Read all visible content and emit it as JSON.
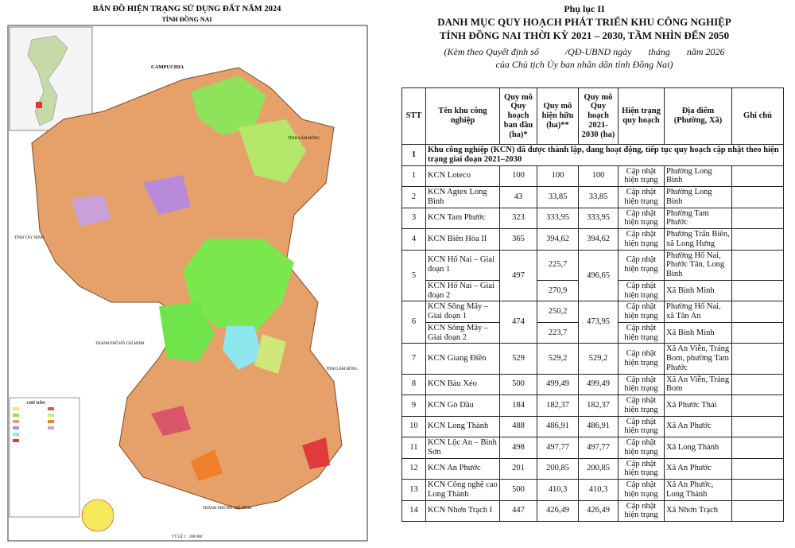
{
  "map": {
    "title": "BẢN ĐỒ HIỆN TRẠNG SỬ DỤNG ĐẤT NĂM 2024",
    "subtitle": "TỈNH ĐỒNG NAI",
    "labels": [
      "CAMPUCHIA",
      "TỈNH LÂM ĐỒNG",
      "TỈNH TÂY NINH",
      "THÀNH PHỐ HỒ CHÍ MINH",
      "TỈNH LÂM ĐỒNG",
      "THÀNH PHỐ HỒ CHÍ MINH"
    ],
    "legend_title": "CHÚ DẪN",
    "scale": "TỶ LỆ 1 : 100 000"
  },
  "header": {
    "appendix": "Phụ lục II",
    "title_line1": "DANH MỤC QUY HOẠCH PHÁT TRIỂN KHU CÔNG NGHIỆP",
    "title_line2": "TỈNH ĐỒNG NAI THỜI KỲ 2021 – 2030, TẦM NHÌN ĐẾN 2050",
    "note_line1": "(Kèm theo Quyết định số           /QĐ-UBND ngày       tháng       năm 2026",
    "note_line2": "của Chủ tịch Ủy ban nhân dân tỉnh Đồng Nai)"
  },
  "table": {
    "columns": [
      "STT",
      "Tên khu công nghiệp",
      "Quy mô Quy hoạch ban đầu (ha)*",
      "Quy mô hiện hữu (ha)**",
      "Quy mô Quy hoạch 2021-2030 (ha)",
      "Hiện trạng quy hoạch",
      "Địa điểm (Phường, Xã)",
      "Ghi chú"
    ],
    "section": {
      "stt": "1",
      "text": "Khu công nghiệp (KCN) đã được thành lập, đang hoạt động, tiếp tục quy hoạch cập nhật theo hiện trạng giai đoạn 2021–2030"
    },
    "rows": [
      {
        "stt": "1",
        "planned": "100",
        "plan2030": "100",
        "parts": [
          {
            "name": "KCN Loteco",
            "existing": "100",
            "status": "Cập nhật hiện trạng",
            "location": "Phường Long Bình"
          }
        ]
      },
      {
        "stt": "2",
        "planned": "43",
        "plan2030": "33,85",
        "parts": [
          {
            "name": "KCN Agtex Long Bình",
            "existing": "33,85",
            "status": "Cập nhật hiện trạng",
            "location": "Phường Long Bình"
          }
        ]
      },
      {
        "stt": "3",
        "planned": "323",
        "plan2030": "333,95",
        "parts": [
          {
            "name": "KCN Tam Phước",
            "existing": "333,95",
            "status": "Cập nhật hiện trạng",
            "location": "Phường Tam Phước"
          }
        ]
      },
      {
        "stt": "4",
        "planned": "365",
        "plan2030": "394,62",
        "parts": [
          {
            "name": "KCN Biên Hòa II",
            "existing": "394,62",
            "status": "Cập nhật hiện trạng",
            "location": "Phường Trấn Biên, xã Long Hưng"
          }
        ]
      },
      {
        "stt": "5",
        "planned": "497",
        "plan2030": "496,65",
        "parts": [
          {
            "name": "KCN Hố Nai – Giai đoạn 1",
            "existing": "225,7",
            "status": "Cập nhật hiện trạng",
            "location": "Phường Hố Nai, Phước Tân, Long Bình"
          },
          {
            "name": "KCN Hố Nai – Giai đoạn 2",
            "existing": "270,9",
            "status": "Cập nhật hiện trạng",
            "location": "Xã Bình Minh"
          }
        ]
      },
      {
        "stt": "6",
        "planned": "474",
        "plan2030": "473,95",
        "parts": [
          {
            "name": "KCN Sông Mây – Giai đoạn 1",
            "existing": "250,2",
            "status": "Cập nhật hiện trạng",
            "location": "Phường Hố Nai, xã Tân An"
          },
          {
            "name": "KCN Sông Mây – Giai đoạn 2",
            "existing": "223,7",
            "status": "Cập nhật hiện trạng",
            "location": "Xã Bình Minh"
          }
        ]
      },
      {
        "stt": "7",
        "planned": "529",
        "plan2030": "529,2",
        "parts": [
          {
            "name": "KCN Giang Điền",
            "existing": "529,2",
            "status": "Cập nhật hiện trạng",
            "location": "Xã An Viễn, Trảng Bom, phường Tam Phước"
          }
        ]
      },
      {
        "stt": "8",
        "planned": "500",
        "plan2030": "499,49",
        "parts": [
          {
            "name": "KCN Bàu Xéo",
            "existing": "499,49",
            "status": "Cập nhật hiện trạng",
            "location": "Xã An Viễn, Trảng Bom"
          }
        ]
      },
      {
        "stt": "9",
        "planned": "184",
        "plan2030": "182,37",
        "parts": [
          {
            "name": "KCN Gò Dầu",
            "existing": "182,37",
            "status": "Cập nhật hiện trạng",
            "location": "Xã Phước Thái"
          }
        ]
      },
      {
        "stt": "10",
        "planned": "488",
        "plan2030": "486,91",
        "parts": [
          {
            "name": "KCN Long Thành",
            "existing": "486,91",
            "status": "Cập nhật hiện trạng",
            "location": "Xã An Phước"
          }
        ]
      },
      {
        "stt": "11",
        "planned": "498",
        "plan2030": "497,77",
        "parts": [
          {
            "name": "KCN Lộc An – Bình Sơn",
            "existing": "497,77",
            "status": "Cập nhật hiện trạng",
            "location": "Xã Long Thành"
          }
        ]
      },
      {
        "stt": "12",
        "planned": "201",
        "plan2030": "200,85",
        "parts": [
          {
            "name": "KCN An Phước",
            "existing": "200,85",
            "status": "Cập nhật hiện trạng",
            "location": "Xã An Phước"
          }
        ]
      },
      {
        "stt": "13",
        "planned": "500",
        "plan2030": "410,3",
        "parts": [
          {
            "name": "KCN Công nghệ cao Long Thành",
            "existing": "410,3",
            "status": "Cập nhật hiện trạng",
            "location": "Xã An Phước, Long Thành"
          }
        ]
      },
      {
        "stt": "14",
        "planned": "447",
        "plan2030": "426,49",
        "parts": [
          {
            "name": "KCN Nhơn Trạch I",
            "existing": "426,49",
            "status": "Cập nhật hiện trạng",
            "location": "Xã Nhơn Trạch"
          }
        ]
      }
    ]
  }
}
